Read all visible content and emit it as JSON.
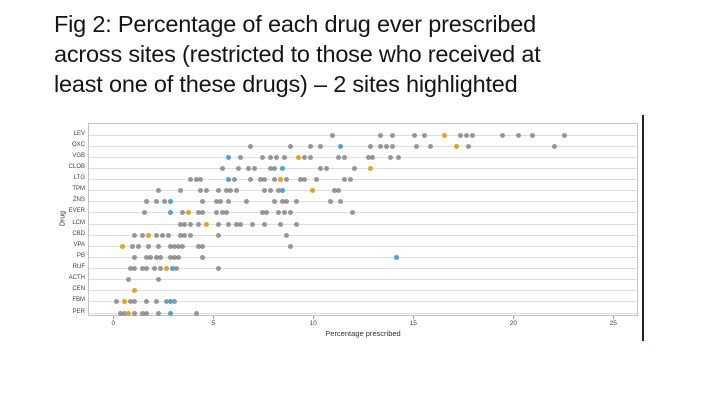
{
  "title_lines": [
    "Fig 2: Percentage of each drug ever prescribed",
    "across sites (restricted to those who received at",
    "least one of these drugs) – 2 sites highlighted"
  ],
  "colors": {
    "dot_gray": "rgba(124,124,124,0.78)",
    "site_orange": "#efa20c",
    "site_blue": "#45a5e0",
    "gridline": "#dedede",
    "plot_frame": "#c3c3c3",
    "right_bar": "#1d1d30"
  },
  "chart_data": {
    "type": "scatter",
    "title": "",
    "xlabel": "Percentage prescribed",
    "ylabel": "Drug",
    "xlim": [
      -1.3,
      26.2
    ],
    "x_ticks": [
      0,
      5,
      10,
      15,
      20,
      25
    ],
    "grid": "horizontal-per-row",
    "legend": "none (2 highlighted sites shown as orange and blue dots)",
    "rows": [
      {
        "drug": "LEV",
        "gray": [
          10.9,
          13.3,
          13.9,
          15.0,
          15.5,
          17.3,
          17.6,
          17.9,
          19.4,
          20.2,
          20.9,
          22.5
        ],
        "orange": [
          16.5
        ],
        "blue": []
      },
      {
        "drug": "OXC",
        "gray": [
          6.8,
          8.8,
          9.8,
          10.3,
          12.8,
          13.3,
          13.6,
          13.9,
          15.1,
          15.8,
          17.7,
          22.0
        ],
        "orange": [
          17.1
        ],
        "blue": [
          11.3
        ]
      },
      {
        "drug": "VGB",
        "gray": [
          6.3,
          7.4,
          7.8,
          8.1,
          8.5,
          9.5,
          9.8,
          11.2,
          11.5,
          12.7,
          12.9,
          13.8,
          14.2
        ],
        "orange": [
          9.2
        ],
        "blue": [
          5.7
        ]
      },
      {
        "drug": "CLOB",
        "gray": [
          5.4,
          6.2,
          6.7,
          7.0,
          7.8,
          8.0,
          10.3,
          10.6,
          12.0
        ],
        "orange": [
          12.8
        ],
        "blue": [
          8.4
        ]
      },
      {
        "drug": "LTG",
        "gray": [
          3.8,
          4.1,
          4.3,
          6.0,
          6.8,
          7.3,
          7.5,
          8.0,
          8.6,
          9.3,
          9.5,
          10.1,
          11.5,
          11.8
        ],
        "orange": [
          8.3
        ],
        "blue": [
          5.7
        ]
      },
      {
        "drug": "TPM",
        "gray": [
          2.2,
          3.3,
          4.3,
          4.6,
          5.2,
          5.6,
          5.8,
          6.1,
          7.5,
          7.8,
          8.2,
          11.0,
          11.2
        ],
        "orange": [
          9.9
        ],
        "blue": [
          8.4
        ]
      },
      {
        "drug": "ZNS",
        "gray": [
          1.6,
          2.1,
          2.5,
          4.4,
          5.1,
          5.3,
          5.7,
          6.6,
          8.0,
          8.4,
          8.6,
          9.1,
          10.8,
          11.3
        ],
        "orange": [],
        "blue": [
          2.8
        ]
      },
      {
        "drug": "EVER",
        "gray": [
          1.5,
          3.4,
          4.2,
          4.4,
          5.1,
          5.4,
          5.6,
          7.4,
          7.6,
          8.2,
          8.5,
          8.8,
          11.9
        ],
        "orange": [
          3.7
        ],
        "blue": [
          2.8
        ]
      },
      {
        "drug": "LCM",
        "gray": [
          3.3,
          3.5,
          3.8,
          4.2,
          5.2,
          5.7,
          6.1,
          6.3,
          6.9,
          7.5,
          8.3,
          9.1
        ],
        "orange": [
          4.6
        ],
        "blue": []
      },
      {
        "drug": "CBD",
        "gray": [
          1.0,
          1.4,
          2.1,
          2.4,
          2.7,
          3.3,
          3.5,
          3.8,
          5.2,
          8.6
        ],
        "orange": [
          1.7
        ],
        "blue": []
      },
      {
        "drug": "VPA",
        "gray": [
          0.9,
          1.2,
          1.7,
          2.2,
          2.8,
          3.0,
          3.2,
          3.4,
          4.2,
          4.4,
          8.8
        ],
        "orange": [
          0.4
        ],
        "blue": []
      },
      {
        "drug": "PB",
        "gray": [
          1.0,
          1.6,
          1.8,
          2.1,
          2.3,
          2.8,
          3.0,
          3.2,
          4.4
        ],
        "orange": [],
        "blue": [
          14.1
        ]
      },
      {
        "drug": "RUF",
        "gray": [
          0.8,
          1.0,
          1.4,
          1.6,
          2.0,
          2.3,
          3.1,
          5.2
        ],
        "orange": [
          2.6
        ],
        "blue": [
          2.9
        ]
      },
      {
        "drug": "ACTH",
        "gray": [
          0.7,
          2.2
        ],
        "orange": [],
        "blue": []
      },
      {
        "drug": "CEN",
        "gray": [],
        "orange": [
          1.0
        ],
        "blue": []
      },
      {
        "drug": "FBM",
        "gray": [
          0.1,
          0.8,
          1.0,
          1.6,
          2.1,
          2.6,
          3.0
        ],
        "orange": [
          0.5
        ],
        "blue": [
          2.8
        ]
      },
      {
        "drug": "PER",
        "gray": [
          0.3,
          0.5,
          1.0,
          1.4,
          1.6,
          2.2,
          4.1
        ],
        "orange": [
          0.7
        ],
        "blue": [
          2.8
        ]
      }
    ]
  }
}
